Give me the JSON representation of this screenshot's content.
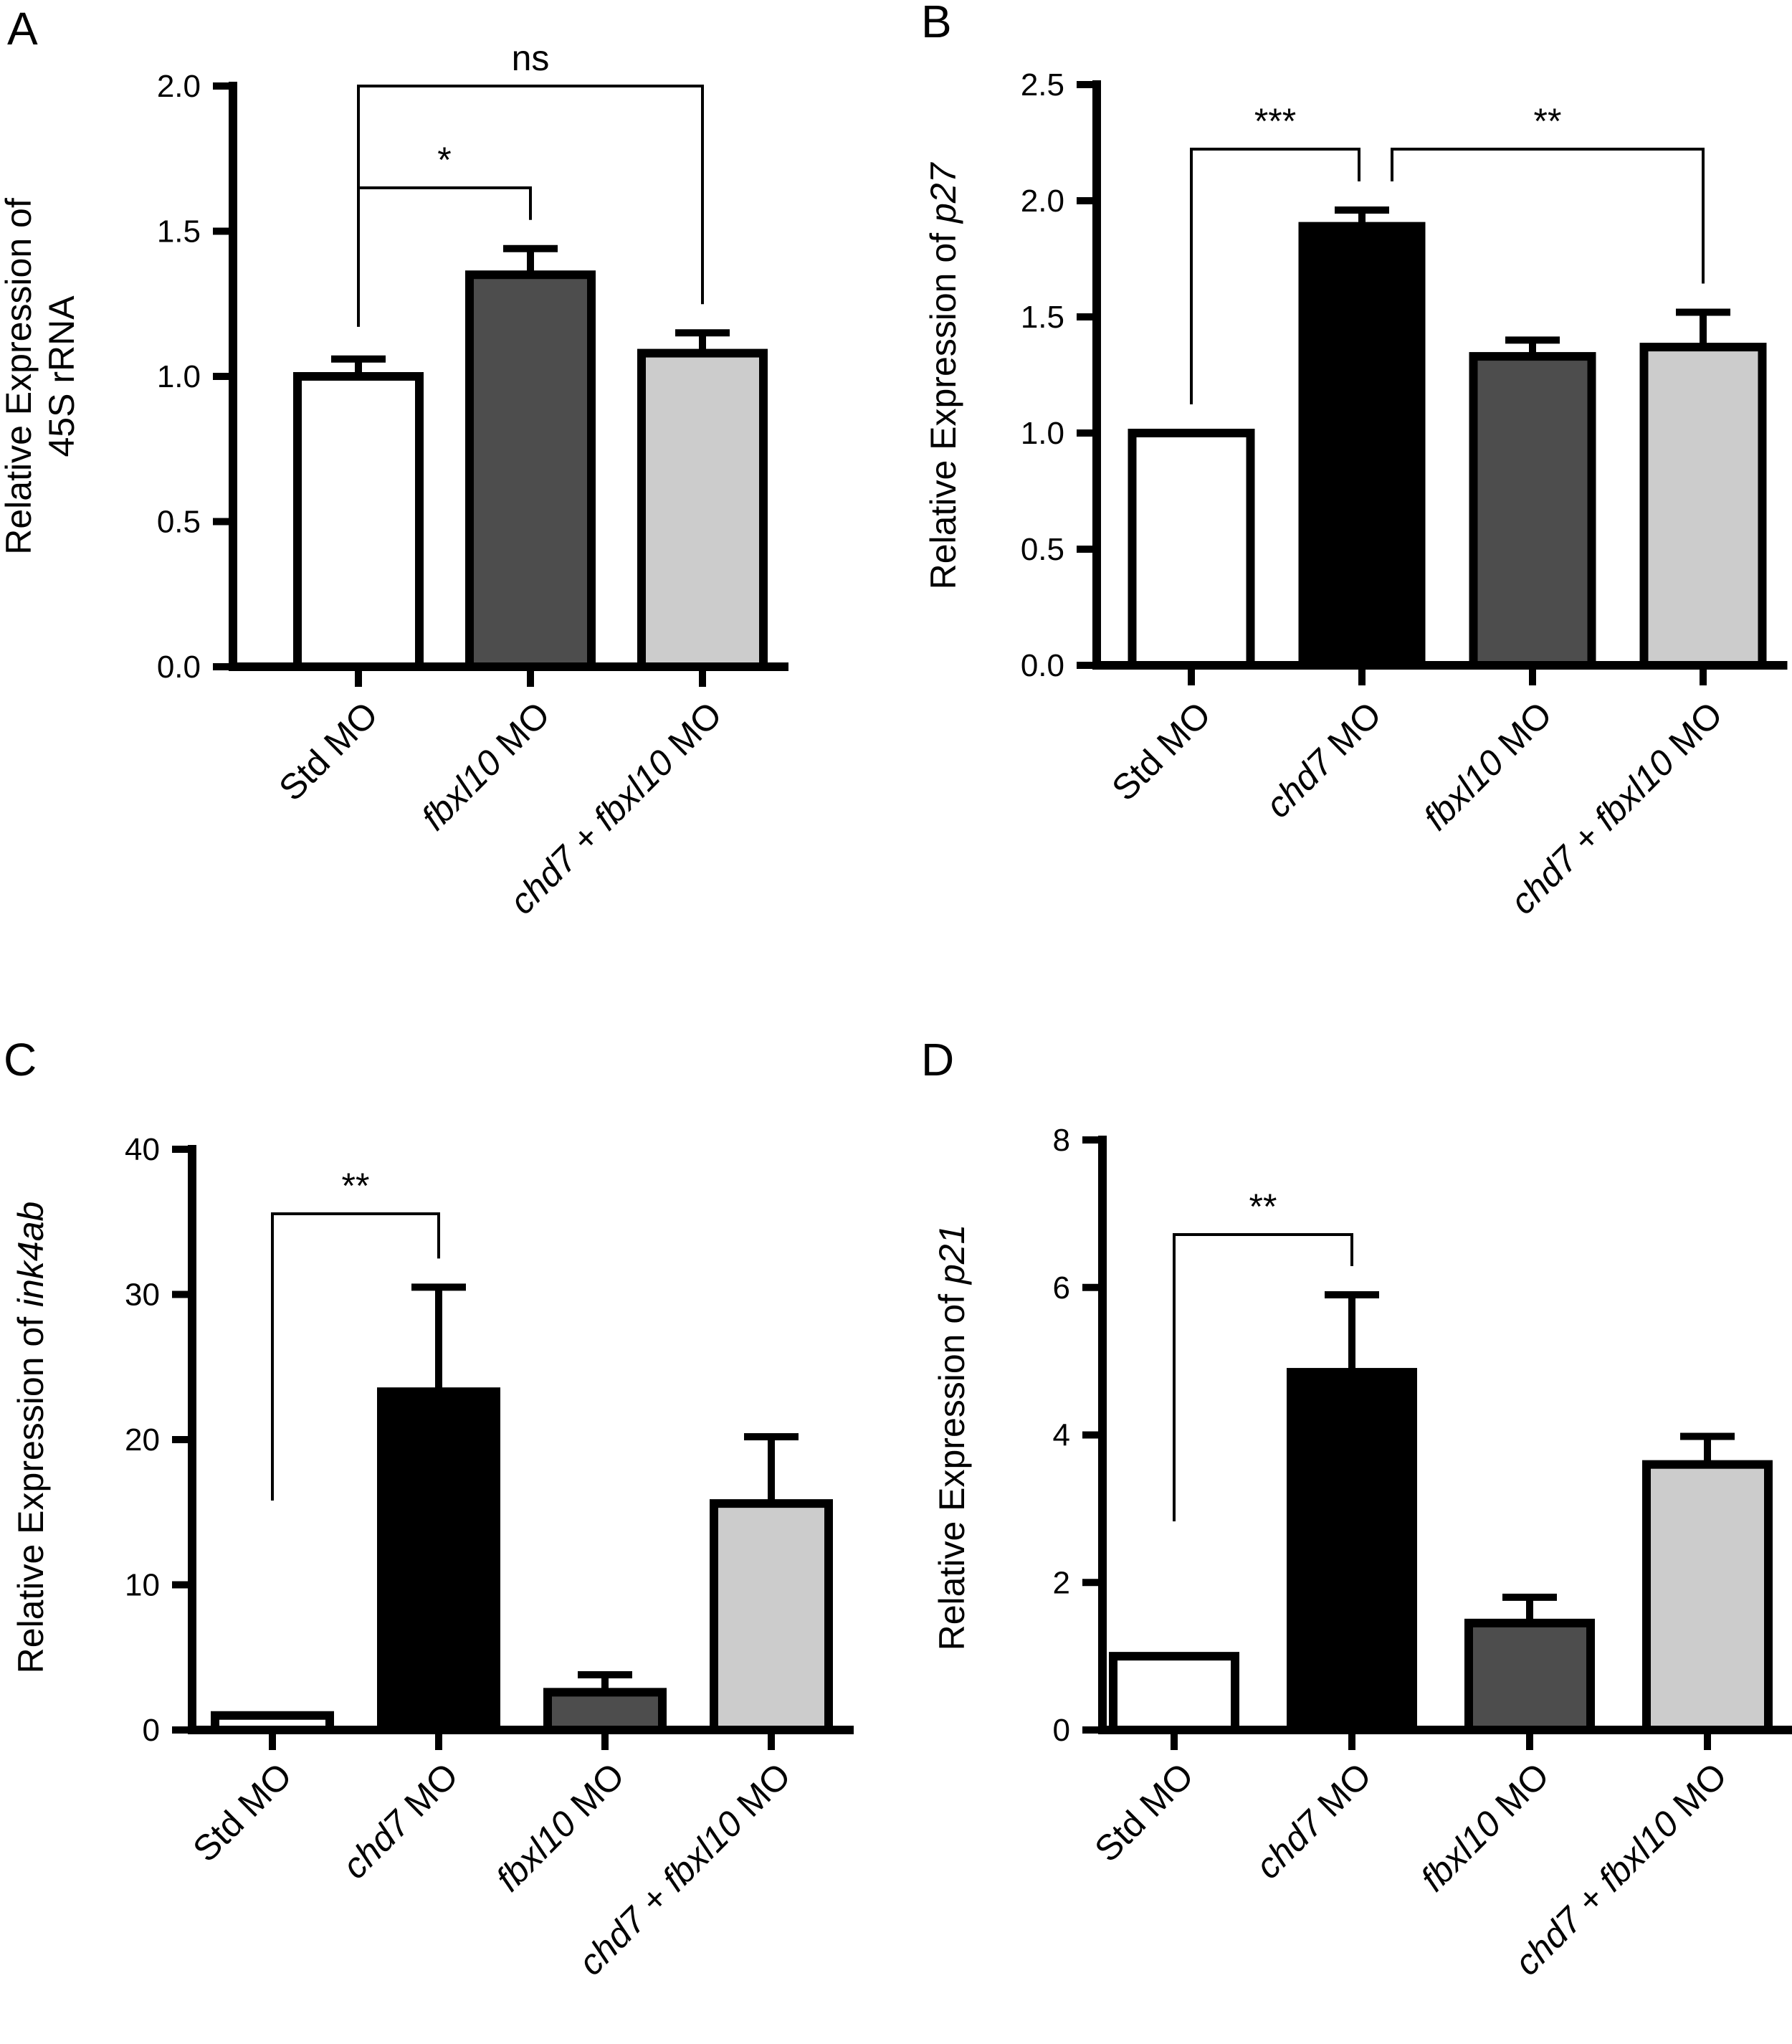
{
  "chart_data": [
    {
      "panel": "A",
      "type": "bar",
      "ylabel_lines": [
        "Relative Expression of",
        "45S rRNA"
      ],
      "ylim": [
        0,
        2.0
      ],
      "yticks": [
        "0.0",
        "0.5",
        "1.0",
        "1.5",
        "2.0"
      ],
      "categories": [
        {
          "gene": "",
          "suffix": "Std MO"
        },
        {
          "gene": "fbxl10",
          "suffix": " MO"
        },
        {
          "gene": "chd7 + fbxl10",
          "suffix": " MO"
        }
      ],
      "values": [
        1.0,
        1.35,
        1.08
      ],
      "errors": [
        0.06,
        0.09,
        0.07
      ],
      "colors": [
        "#ffffff",
        "#4d4d4d",
        "#cccccc"
      ],
      "significance": [
        {
          "from": 0,
          "to": 1,
          "label": "*"
        },
        {
          "from": 0,
          "to": 2,
          "label": "ns"
        }
      ]
    },
    {
      "panel": "B",
      "type": "bar",
      "ylabel_prefix": "Relative Expression of ",
      "ylabel_gene": "p27",
      "ylim": [
        0,
        2.5
      ],
      "yticks": [
        "0.0",
        "0.5",
        "1.0",
        "1.5",
        "2.0",
        "2.5"
      ],
      "categories": [
        {
          "gene": "",
          "suffix": "Std MO"
        },
        {
          "gene": "chd7",
          "suffix": " MO"
        },
        {
          "gene": "fbxl10",
          "suffix": " MO"
        },
        {
          "gene": "chd7 + fbxl10",
          "suffix": " MO"
        }
      ],
      "values": [
        1.0,
        1.89,
        1.33,
        1.37
      ],
      "errors": [
        0.0,
        0.07,
        0.07,
        0.15
      ],
      "colors": [
        "#ffffff",
        "#000000",
        "#4d4d4d",
        "#cccccc"
      ],
      "significance": [
        {
          "from": 0,
          "to": 1,
          "label": "***"
        },
        {
          "from": 1,
          "to": 3,
          "label": "**"
        }
      ]
    },
    {
      "panel": "C",
      "type": "bar",
      "ylabel_prefix": "Relative Expression of ",
      "ylabel_gene": "ink4ab",
      "ylim": [
        0,
        40
      ],
      "yticks": [
        "0",
        "10",
        "20",
        "30",
        "40"
      ],
      "categories": [
        {
          "gene": "",
          "suffix": "Std MO"
        },
        {
          "gene": "chd7",
          "suffix": " MO"
        },
        {
          "gene": "fbxl10",
          "suffix": " MO"
        },
        {
          "gene": "chd7 + fbxl10",
          "suffix": " MO"
        }
      ],
      "values": [
        1.0,
        23.3,
        2.6,
        15.6
      ],
      "errors": [
        0.0,
        7.2,
        1.2,
        4.6
      ],
      "colors": [
        "#ffffff",
        "#000000",
        "#4d4d4d",
        "#cccccc"
      ],
      "significance": [
        {
          "from": 0,
          "to": 1,
          "label": "**"
        }
      ]
    },
    {
      "panel": "D",
      "type": "bar",
      "ylabel_prefix": "Relative Expression of ",
      "ylabel_gene": "p21",
      "ylim": [
        0,
        8
      ],
      "yticks": [
        "0",
        "2",
        "4",
        "6",
        "8"
      ],
      "categories": [
        {
          "gene": "",
          "suffix": "Std MO"
        },
        {
          "gene": "chd7",
          "suffix": " MO"
        },
        {
          "gene": "fbxl10",
          "suffix": " MO"
        },
        {
          "gene": "chd7 + fbxl10",
          "suffix": " MO"
        }
      ],
      "values": [
        1.0,
        4.85,
        1.45,
        3.6
      ],
      "errors": [
        0.0,
        1.05,
        0.35,
        0.38
      ],
      "colors": [
        "#ffffff",
        "#000000",
        "#4d4d4d",
        "#cccccc"
      ],
      "significance": [
        {
          "from": 0,
          "to": 1,
          "label": "**"
        }
      ]
    }
  ]
}
